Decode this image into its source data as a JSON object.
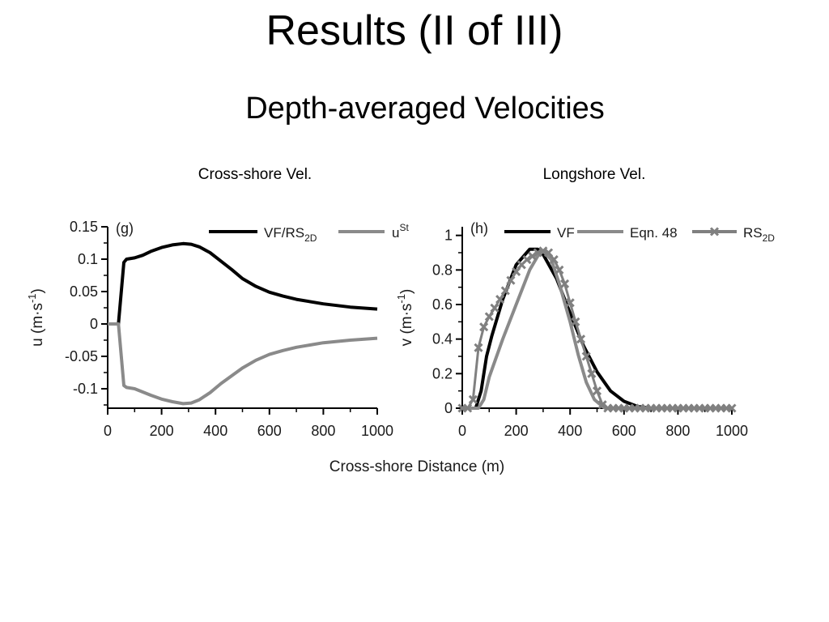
{
  "slide": {
    "title": "Results (II of III)",
    "subtitle": "Depth-averaged Velocities"
  },
  "panels": {
    "left_caption": "Cross-shore Vel.",
    "right_caption": "Longshore Vel."
  },
  "shared_xlabel": "Cross-shore Distance (m)",
  "colors": {
    "black_series": "#000000",
    "gray_series": "#8a8a8a",
    "marker_series": "#808080"
  },
  "chart_data": [
    {
      "type": "line",
      "panel_label": "(g)",
      "ylabel": "u (m·s⁻¹)",
      "ylabel_main": "u (m·s",
      "ylabel_sup": "-1",
      "ylabel_close": ")",
      "xlim": [
        0,
        1000
      ],
      "ylim": [
        -0.13,
        0.15
      ],
      "xticks": [
        0,
        200,
        400,
        600,
        800,
        1000
      ],
      "xtick_labels": [
        "0",
        "200",
        "400",
        "600",
        "800",
        "1000"
      ],
      "yticks": [
        0.15,
        0.1,
        0.05,
        0,
        -0.05,
        -0.1
      ],
      "ytick_labels": [
        "0.15",
        "0.1",
        "0.05",
        "0",
        "-0.05",
        "-0.1"
      ],
      "legend": "top-right",
      "series": [
        {
          "name": "VF/RS2D",
          "label_main": "VF/RS",
          "label_sub": "2D",
          "color": "#000000",
          "x": [
            0,
            40,
            60,
            70,
            100,
            130,
            160,
            200,
            240,
            280,
            310,
            340,
            380,
            420,
            460,
            500,
            550,
            600,
            650,
            700,
            800,
            900,
            1000
          ],
          "y": [
            0,
            0,
            0.095,
            0.1,
            0.102,
            0.106,
            0.112,
            0.118,
            0.122,
            0.124,
            0.123,
            0.119,
            0.11,
            0.097,
            0.084,
            0.07,
            0.058,
            0.049,
            0.043,
            0.038,
            0.031,
            0.026,
            0.023
          ]
        },
        {
          "name": "uSt",
          "label_main": "u",
          "label_sup": "St",
          "color": "#8a8a8a",
          "x": [
            0,
            40,
            60,
            70,
            100,
            130,
            160,
            200,
            240,
            280,
            310,
            340,
            380,
            420,
            460,
            500,
            550,
            600,
            650,
            700,
            800,
            900,
            1000
          ],
          "y": [
            0,
            0,
            -0.095,
            -0.098,
            -0.1,
            -0.105,
            -0.11,
            -0.116,
            -0.12,
            -0.123,
            -0.122,
            -0.117,
            -0.106,
            -0.092,
            -0.08,
            -0.068,
            -0.056,
            -0.047,
            -0.041,
            -0.036,
            -0.029,
            -0.025,
            -0.022
          ]
        }
      ]
    },
    {
      "type": "line",
      "panel_label": "(h)",
      "ylabel": "v (m·s⁻¹)",
      "ylabel_main": "v (m·s",
      "ylabel_sup": "-1",
      "ylabel_close": ")",
      "xlim": [
        0,
        1000
      ],
      "ylim": [
        0,
        1.05
      ],
      "xticks": [
        0,
        200,
        400,
        600,
        800,
        1000
      ],
      "xtick_labels": [
        "0",
        "200",
        "400",
        "600",
        "800",
        "1000"
      ],
      "yticks": [
        1,
        0.8,
        0.6,
        0.4,
        0.2,
        0
      ],
      "ytick_labels": [
        "1",
        "0.8",
        "0.6",
        "0.4",
        "0.2",
        "0"
      ],
      "legend": "top",
      "series": [
        {
          "name": "VF",
          "label_main": "VF",
          "color": "#000000",
          "style": "line",
          "x": [
            0,
            50,
            70,
            90,
            110,
            150,
            200,
            250,
            280,
            300,
            350,
            400,
            450,
            500,
            550,
            600,
            650,
            700,
            750,
            1000
          ],
          "y": [
            0,
            0,
            0.1,
            0.3,
            0.42,
            0.63,
            0.83,
            0.92,
            0.92,
            0.89,
            0.75,
            0.55,
            0.36,
            0.21,
            0.1,
            0.04,
            0.01,
            0,
            0,
            0
          ]
        },
        {
          "name": "Eqn. 48",
          "label_main": "Eqn. 48",
          "color": "#8a8a8a",
          "style": "line",
          "x": [
            0,
            60,
            80,
            100,
            150,
            200,
            250,
            280,
            300,
            330,
            360,
            400,
            430,
            460,
            490,
            520,
            530,
            1000
          ],
          "y": [
            0,
            0,
            0.05,
            0.18,
            0.4,
            0.6,
            0.8,
            0.88,
            0.91,
            0.86,
            0.72,
            0.5,
            0.31,
            0.15,
            0.05,
            0.01,
            0,
            0
          ]
        },
        {
          "name": "RS2D",
          "label_main": "RS",
          "label_sub": "2D",
          "color": "#808080",
          "style": "markers",
          "x": [
            0,
            20,
            40,
            60,
            80,
            100,
            120,
            140,
            160,
            180,
            200,
            220,
            240,
            260,
            280,
            300,
            320,
            340,
            360,
            380,
            400,
            420,
            440,
            460,
            480,
            500,
            520,
            540,
            560,
            580,
            600,
            620,
            640,
            660,
            680,
            700,
            720,
            740,
            760,
            780,
            800,
            820,
            840,
            860,
            880,
            900,
            920,
            940,
            960,
            980,
            1000
          ],
          "y": [
            0,
            0,
            0.05,
            0.35,
            0.47,
            0.53,
            0.58,
            0.63,
            0.68,
            0.74,
            0.79,
            0.83,
            0.86,
            0.88,
            0.9,
            0.91,
            0.9,
            0.86,
            0.8,
            0.72,
            0.61,
            0.5,
            0.4,
            0.3,
            0.2,
            0.1,
            0.02,
            0,
            0,
            0,
            0,
            0,
            0,
            0,
            0,
            0,
            0,
            0,
            0,
            0,
            0,
            0,
            0,
            0,
            0,
            0,
            0,
            0,
            0,
            0,
            0
          ]
        }
      ]
    }
  ]
}
